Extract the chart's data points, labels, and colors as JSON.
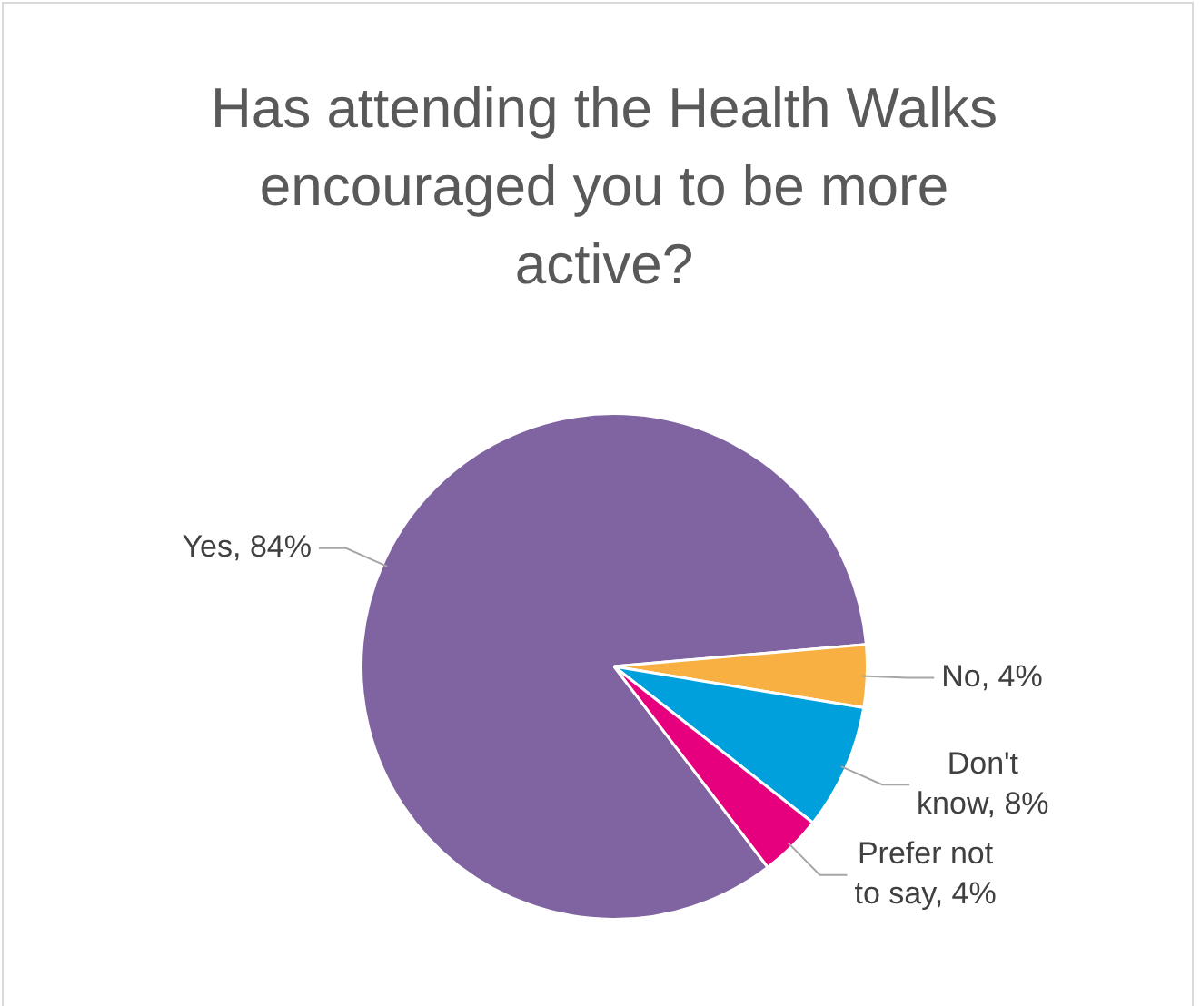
{
  "chart_data": {
    "type": "pie",
    "title": "Has attending the Health Walks encouraged you to be more active?",
    "categories": [
      "Yes",
      "No",
      "Don't know",
      "Prefer not to say"
    ],
    "values": [
      84,
      4,
      8,
      4
    ],
    "value_labels": [
      "84%",
      "4%",
      "8%",
      "4%"
    ],
    "colors": [
      "#8064a2",
      "#f9b042",
      "#00a0dc",
      "#e6007e"
    ],
    "legend": false
  }
}
